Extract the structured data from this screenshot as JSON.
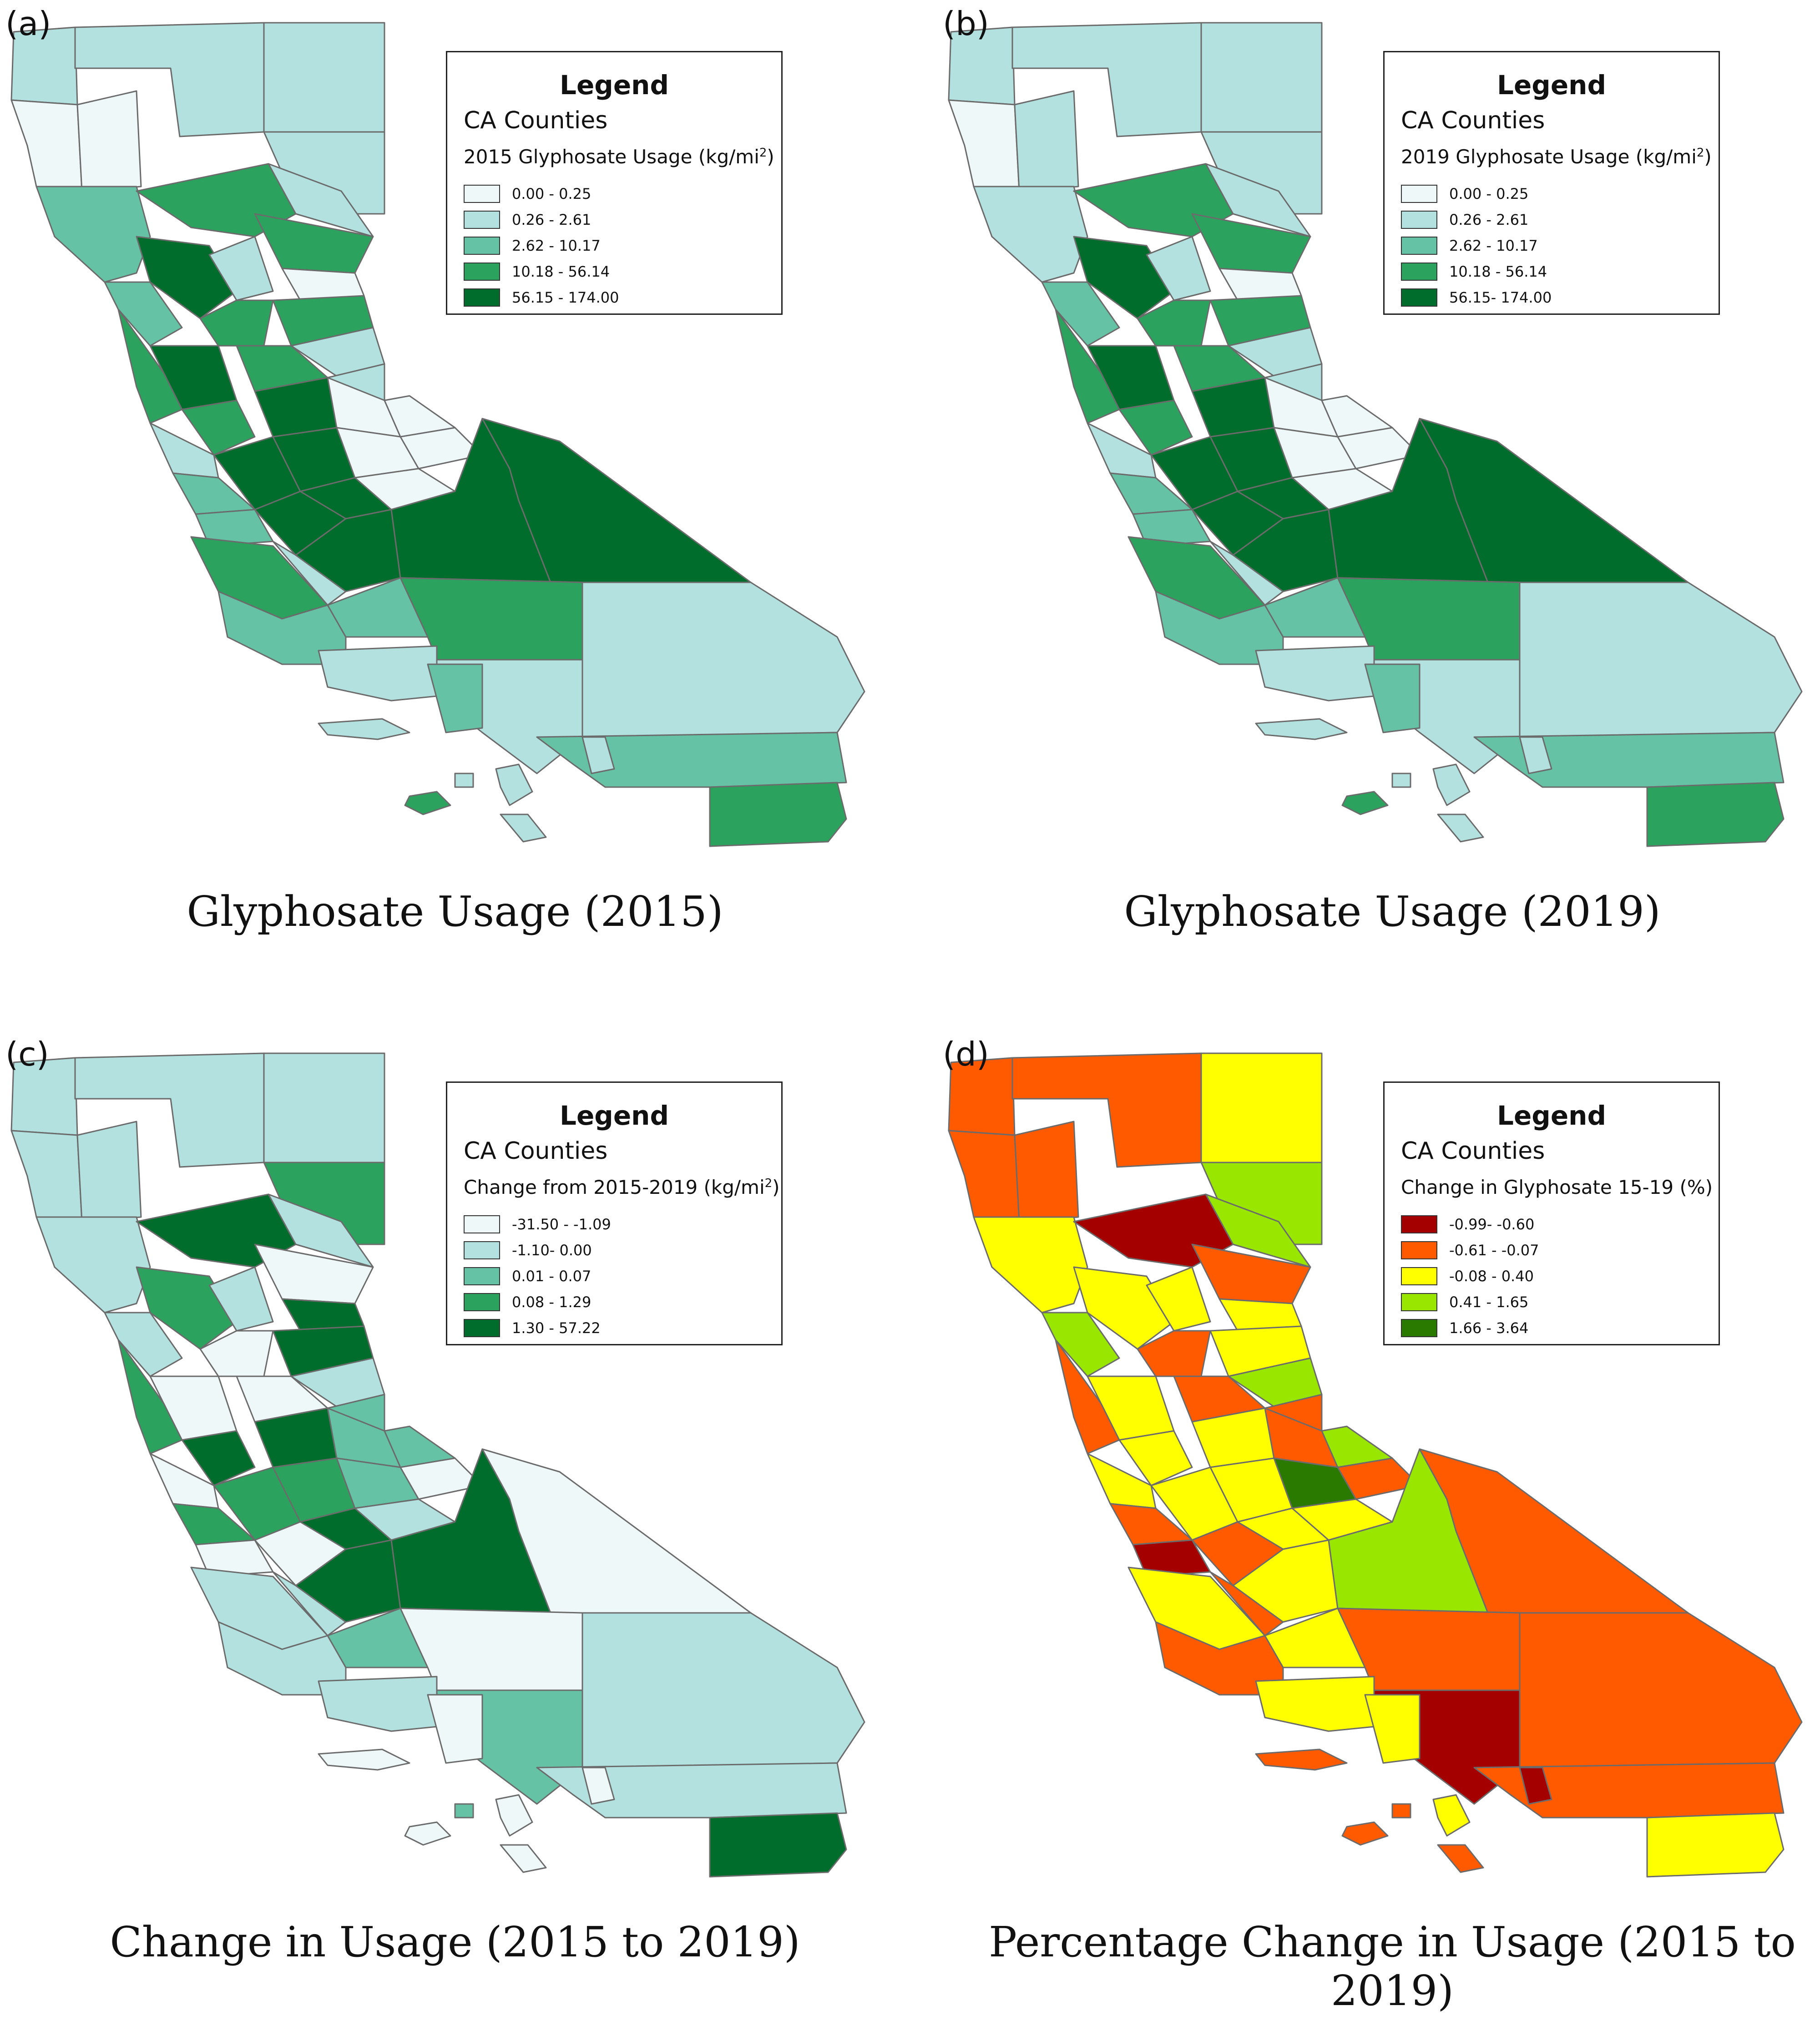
{
  "panels": [
    {
      "letter": "(a)",
      "caption": "Glyphosate Usage (2015)",
      "legend": {
        "title": "Legend",
        "layer": "CA Counties",
        "field": "2015 Glyphosate Usage (kg/mi",
        "field_sup": "2",
        "field_end": ")",
        "classes": [
          {
            "label": "0.00 - 0.25",
            "color": "#eef8f8"
          },
          {
            "label": "0.26 - 2.61",
            "color": "#b3e1df"
          },
          {
            "label": "2.62 - 10.17",
            "color": "#66c2a4"
          },
          {
            "label": "10.18 - 56.14",
            "color": "#2ca25f"
          },
          {
            "label": "56.15 - 174.00",
            "color": "#006d2c"
          }
        ]
      },
      "region_class": {
        "n1": 1,
        "n2": 0,
        "n3": 1,
        "n4": 1,
        "n5": 1,
        "n6": 0,
        "n7": 2,
        "n8": 3,
        "n9": 1,
        "n10": 4,
        "n11": 3,
        "n12": 1,
        "n13": 0,
        "n14": 2,
        "n15": 3,
        "n16": 4,
        "n17": 3,
        "n18": 3,
        "n19": 1,
        "n20": 1,
        "c1": 3,
        "c2": 3,
        "c3": 4,
        "c4": 0,
        "c5": 0,
        "c6": 1,
        "c7": 2,
        "c8": 4,
        "c9": 4,
        "c10": 0,
        "c11": 0,
        "c12": 2,
        "c13": 4,
        "c14": 4,
        "c15": 0,
        "c16": 3,
        "c17": 1,
        "c18": 4,
        "c19": 4,
        "c20": 4,
        "s1": 2,
        "s2": 2,
        "s3": 3,
        "s4": 1,
        "s5": 1,
        "s6": 1,
        "s7": 2,
        "s8": 2,
        "s9": 3,
        "i1": 1,
        "i2": 1,
        "i3": 1,
        "i4": 3,
        "i5": 1,
        "i6": 1
      }
    },
    {
      "letter": "(b)",
      "caption": "Glyphosate Usage (2019)",
      "legend": {
        "title": "Legend",
        "layer": "CA Counties",
        "field": "2019 Glyphosate Usage (kg/mi",
        "field_sup": "2",
        "field_end": ")",
        "classes": [
          {
            "label": "0.00 - 0.25",
            "color": "#eef8f8"
          },
          {
            "label": "0.26 - 2.61",
            "color": "#b3e1df"
          },
          {
            "label": "2.62 - 10.17",
            "color": "#66c2a4"
          },
          {
            "label": "10.18 - 56.14",
            "color": "#2ca25f"
          },
          {
            "label": "56.15- 174.00",
            "color": "#006d2c"
          }
        ]
      },
      "region_class": {
        "n1": 1,
        "n2": 0,
        "n3": 1,
        "n4": 1,
        "n5": 1,
        "n6": 1,
        "n7": 1,
        "n8": 3,
        "n9": 1,
        "n10": 4,
        "n11": 3,
        "n12": 1,
        "n13": 0,
        "n14": 2,
        "n15": 3,
        "n16": 4,
        "n17": 3,
        "n18": 3,
        "n19": 1,
        "n20": 1,
        "c1": 3,
        "c2": 3,
        "c3": 4,
        "c4": 0,
        "c5": 0,
        "c6": 1,
        "c7": 2,
        "c8": 4,
        "c9": 4,
        "c10": 0,
        "c11": 0,
        "c12": 2,
        "c13": 4,
        "c14": 4,
        "c15": 0,
        "c16": 3,
        "c17": 1,
        "c18": 4,
        "c19": 4,
        "c20": 4,
        "s1": 2,
        "s2": 2,
        "s3": 3,
        "s4": 1,
        "s5": 1,
        "s6": 1,
        "s7": 2,
        "s8": 2,
        "s9": 3,
        "i1": 1,
        "i2": 1,
        "i3": 1,
        "i4": 3,
        "i5": 1,
        "i6": 1
      }
    },
    {
      "letter": "(c)",
      "caption": "Change in Usage (2015 to 2019)",
      "legend": {
        "title": "Legend",
        "layer": "CA Counties",
        "field": "Change from 2015-2019 (kg/mi",
        "field_sup": "2",
        "field_end": ")",
        "classes": [
          {
            "label": "-31.50 - -1.09",
            "color": "#eef8f8"
          },
          {
            "label": "-1.10- 0.00",
            "color": "#b3e1df"
          },
          {
            "label": "0.01 - 0.07",
            "color": "#66c2a4"
          },
          {
            "label": "0.08 - 1.29",
            "color": "#2ca25f"
          },
          {
            "label": "1.30 - 57.22",
            "color": "#006d2c"
          }
        ]
      },
      "region_class": {
        "n1": 1,
        "n2": 1,
        "n3": 1,
        "n4": 1,
        "n5": 3,
        "n6": 1,
        "n7": 1,
        "n8": 4,
        "n9": 1,
        "n10": 3,
        "n11": 0,
        "n12": 1,
        "n13": 4,
        "n14": 1,
        "n15": 0,
        "n16": 0,
        "n17": 4,
        "n18": 0,
        "n19": 1,
        "n20": 2,
        "c1": 3,
        "c2": 4,
        "c3": 4,
        "c4": 2,
        "c5": 2,
        "c6": 0,
        "c7": 3,
        "c8": 3,
        "c9": 3,
        "c10": 2,
        "c11": 0,
        "c12": 0,
        "c13": 0,
        "c14": 4,
        "c15": 1,
        "c16": 1,
        "c17": 1,
        "c18": 4,
        "c19": 4,
        "c20": 0,
        "s1": 1,
        "s2": 2,
        "s3": 0,
        "s4": 1,
        "s5": 2,
        "s6": 1,
        "s7": 0,
        "s8": 1,
        "s9": 4,
        "i1": 0,
        "i2": 0,
        "i3": 2,
        "i4": 0,
        "i5": 0,
        "i6": 0
      }
    },
    {
      "letter": "(d)",
      "caption": "Percentage Change in Usage (2015 to 2019)",
      "legend": {
        "title": "Legend",
        "layer": "CA Counties",
        "field": "Change in Glyphosate 15-19 (%)",
        "field_sup": "",
        "field_end": "",
        "classes": [
          {
            "label": "-0.99- -0.60",
            "color": "#a50000"
          },
          {
            "label": "-0.61 - -0.07",
            "color": "#ff5a00"
          },
          {
            "label": "-0.08 - 0.40",
            "color": "#ffff00"
          },
          {
            "label": "0.41 - 1.65",
            "color": "#99e600"
          },
          {
            "label": "1.66 - 3.64",
            "color": "#2a7a00"
          }
        ]
      },
      "region_class": {
        "n1": 1,
        "n2": 1,
        "n3": 1,
        "n4": 2,
        "n5": 3,
        "n6": 1,
        "n7": 2,
        "n8": 0,
        "n9": 3,
        "n10": 2,
        "n11": 1,
        "n12": 2,
        "n13": 2,
        "n14": 3,
        "n15": 1,
        "n16": 2,
        "n17": 2,
        "n18": 1,
        "n19": 3,
        "n20": 1,
        "c1": 1,
        "c2": 2,
        "c3": 2,
        "c4": 1,
        "c5": 3,
        "c6": 2,
        "c7": 1,
        "c8": 2,
        "c9": 2,
        "c10": 4,
        "c11": 1,
        "c12": 0,
        "c13": 1,
        "c14": 2,
        "c15": 2,
        "c16": 2,
        "c17": 1,
        "c18": 2,
        "c19": 3,
        "c20": 1,
        "s1": 1,
        "s2": 2,
        "s3": 1,
        "s4": 1,
        "s5": 0,
        "s6": 2,
        "s7": 2,
        "s8": 1,
        "s9": 2,
        "i1": 1,
        "i2": 2,
        "i3": 1,
        "i4": 1,
        "i5": 1,
        "i6": 0
      }
    }
  ]
}
